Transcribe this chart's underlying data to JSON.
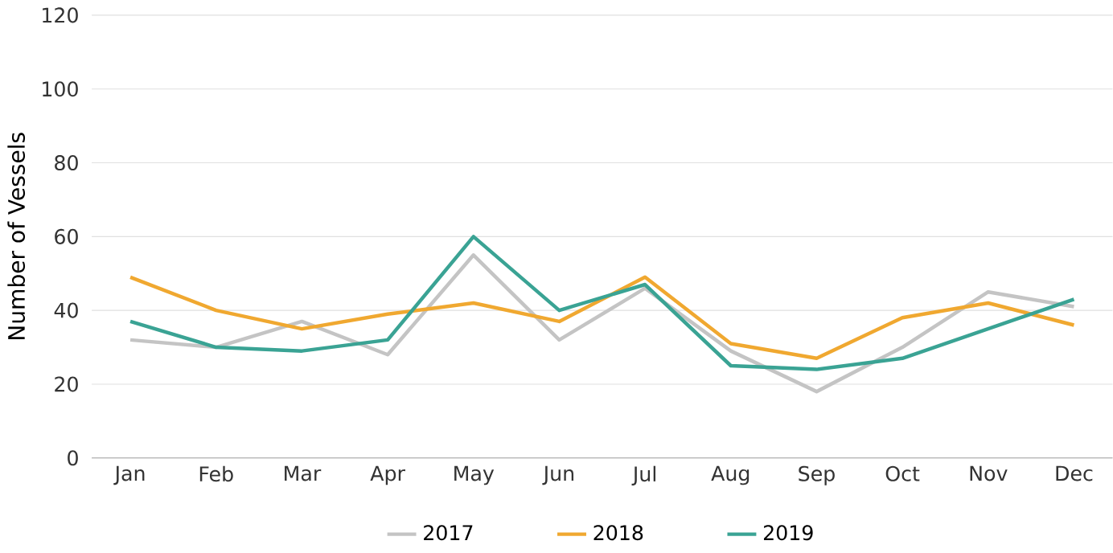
{
  "chart_data": {
    "type": "line",
    "ylabel": "Number of Vessels",
    "categories": [
      "Jan",
      "Feb",
      "Mar",
      "Apr",
      "May",
      "Jun",
      "Jul",
      "Aug",
      "Sep",
      "Oct",
      "Nov",
      "Dec"
    ],
    "series": [
      {
        "name": "2017",
        "color": "#c4c4c4",
        "values": [
          32,
          30,
          37,
          28,
          55,
          32,
          46,
          29,
          18,
          30,
          45,
          41
        ]
      },
      {
        "name": "2018",
        "color": "#f0a830",
        "values": [
          49,
          40,
          35,
          39,
          42,
          37,
          49,
          31,
          27,
          38,
          42,
          36
        ]
      },
      {
        "name": "2019",
        "color": "#3aa394",
        "values": [
          37,
          30,
          29,
          32,
          60,
          40,
          47,
          25,
          24,
          27,
          35,
          43
        ]
      }
    ],
    "ylim": [
      0,
      120
    ],
    "yticks": [
      0,
      20,
      40,
      60,
      80,
      100,
      120
    ],
    "grid": "y",
    "legend": "bottom",
    "marker": "none",
    "line_style": "solid"
  }
}
